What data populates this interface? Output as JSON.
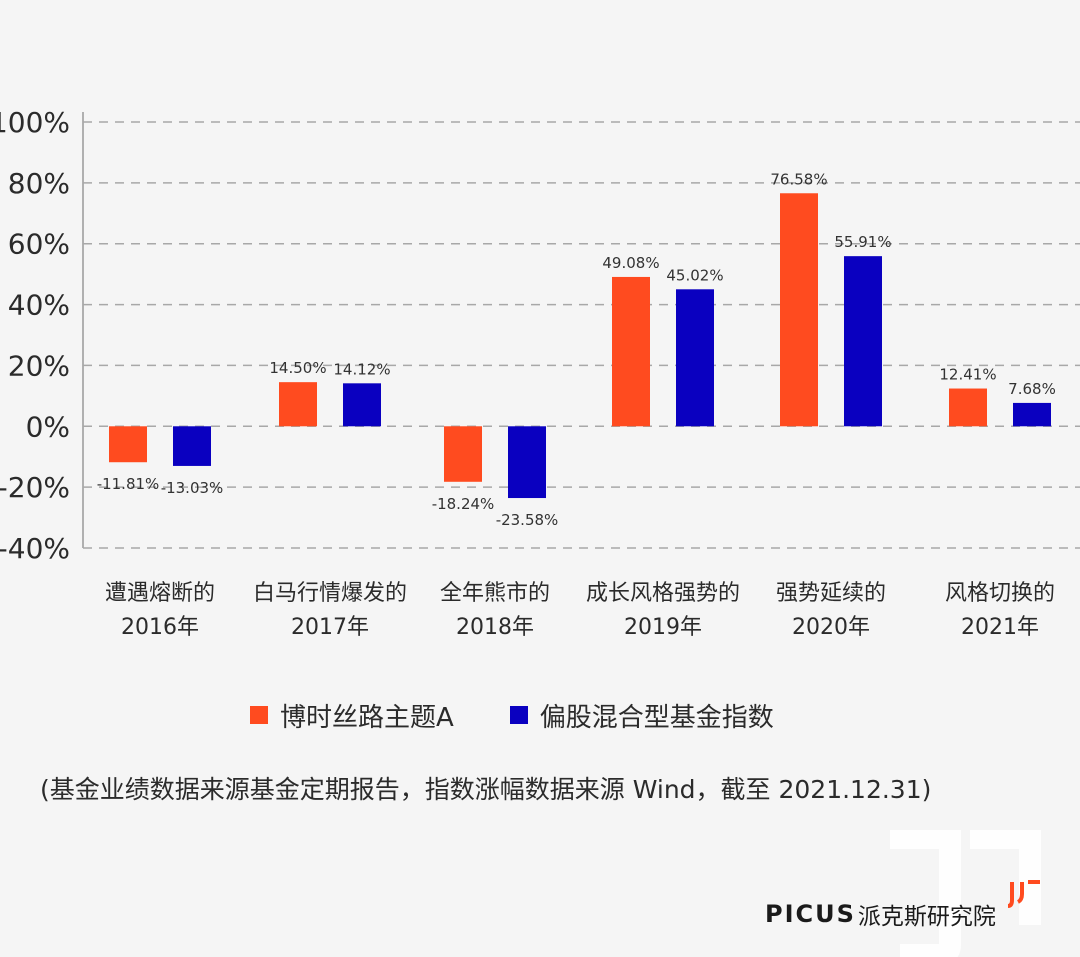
{
  "chart_data": {
    "type": "bar",
    "y_tick_labels": [
      "100%",
      "80%",
      "60%",
      "40%",
      "20%",
      "0%",
      "-20%",
      "-40%"
    ],
    "ylim": [
      -40,
      100
    ],
    "grid": true,
    "categories": [
      [
        "遭遇熔断的",
        "2016年"
      ],
      [
        "白马行情爆发的",
        "2017年"
      ],
      [
        "全年熊市的",
        "2018年"
      ],
      [
        "成长风格强势的",
        "2019年"
      ],
      [
        "强势延续的",
        "2020年"
      ],
      [
        "风格切换的",
        "2021年"
      ]
    ],
    "series": [
      {
        "name": "博时丝路主题A",
        "color": "#ff4b1f",
        "values": [
          -11.81,
          14.5,
          -18.24,
          49.08,
          76.58,
          12.41
        ],
        "labels": [
          "-11.81%",
          "14.50%",
          "-18.24%",
          "49.08%",
          "76.58%",
          "12.41%"
        ]
      },
      {
        "name": "偏股混合型基金指数",
        "color": "#0a00c0",
        "values": [
          -13.03,
          14.12,
          -23.58,
          45.02,
          55.91,
          7.68
        ],
        "labels": [
          "-13.03%",
          "14.12%",
          "-23.58%",
          "45.02%",
          "55.91%",
          "7.68%"
        ]
      }
    ],
    "legend_position": "bottom"
  },
  "note": "(基金业绩数据来源基金定期报告，指数涨幅数据来源 Wind，截至 2021.12.31)",
  "brand": {
    "latin": "PICUS",
    "chinese": "派克斯研究院"
  }
}
